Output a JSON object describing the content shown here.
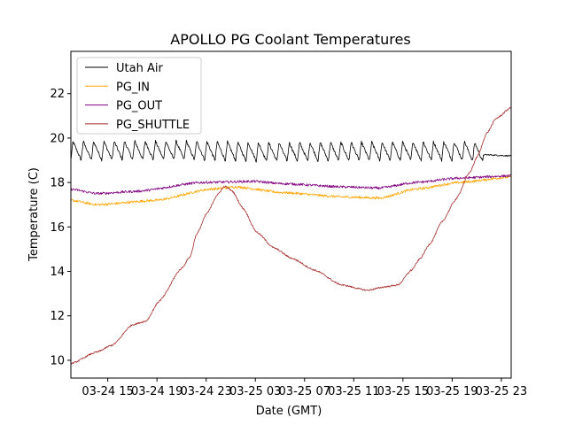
{
  "chart_data": {
    "type": "line",
    "title": "APOLLO PG Coolant Temperatures",
    "xlabel": "Date (GMT)",
    "ylabel": "Temperature (C)",
    "x_units": "hours since 03-24 00:00 GMT",
    "xlim": [
      12.0,
      47.8
    ],
    "ylim": [
      9.2,
      23.9
    ],
    "xticks": [
      {
        "value": 15,
        "label": "03-24 15"
      },
      {
        "value": 19,
        "label": "03-24 19"
      },
      {
        "value": 23,
        "label": "03-24 23"
      },
      {
        "value": 27,
        "label": "03-25 03"
      },
      {
        "value": 31,
        "label": "03-25 07"
      },
      {
        "value": 35,
        "label": "03-25 11"
      },
      {
        "value": 39,
        "label": "03-25 15"
      },
      {
        "value": 43,
        "label": "03-25 19"
      },
      {
        "value": 47,
        "label": "03-25 23"
      }
    ],
    "yticks": [
      {
        "value": 10,
        "label": "10"
      },
      {
        "value": 12,
        "label": "12"
      },
      {
        "value": 14,
        "label": "14"
      },
      {
        "value": 16,
        "label": "16"
      },
      {
        "value": 18,
        "label": "18"
      },
      {
        "value": 20,
        "label": "20"
      },
      {
        "value": 22,
        "label": "22"
      }
    ],
    "grid": false,
    "legend_position": "top-left",
    "series": [
      {
        "name": "Utah Air",
        "color": "#000000",
        "oscillation": {
          "low": 19.0,
          "high": 19.85,
          "cycles": 40,
          "until_hour": 45.5
        },
        "x": [
          12.0,
          20.0,
          28.0,
          36.0,
          44.0,
          45.5,
          47.8
        ],
        "y": [
          19.4,
          19.45,
          19.3,
          19.35,
          19.4,
          19.25,
          19.2
        ]
      },
      {
        "name": "PG_IN",
        "color": "#ffa500",
        "x": [
          12.0,
          14.1,
          19.0,
          23.3,
          25.5,
          29.1,
          34.2,
          37.1,
          40.0,
          43.6,
          47.8
        ],
        "y": [
          17.2,
          17.0,
          17.2,
          17.7,
          17.8,
          17.55,
          17.35,
          17.3,
          17.7,
          18.0,
          18.25
        ]
      },
      {
        "name": "PG_OUT",
        "color": "#800080",
        "x": [
          12.0,
          14.1,
          17.3,
          22.6,
          26.9,
          29.1,
          34.2,
          37.1,
          40.0,
          43.6,
          47.8
        ],
        "y": [
          17.7,
          17.5,
          17.6,
          18.0,
          18.05,
          17.95,
          17.8,
          17.75,
          18.0,
          18.2,
          18.3
        ]
      },
      {
        "name": "PG_SHUTTLE",
        "color": "#a52a2a",
        "x": [
          12.0,
          14.1,
          15.4,
          17.0,
          18.1,
          19.2,
          21.0,
          21.7,
          22.2,
          23.1,
          23.9,
          24.5,
          25.1,
          26.0,
          27.1,
          28.5,
          30.0,
          31.8,
          34.0,
          36.1,
          37.6,
          38.6,
          39.7,
          40.4,
          41.2,
          42.2,
          43.3,
          44.4,
          45.1,
          45.8,
          46.6,
          47.8
        ],
        "y": [
          9.85,
          10.37,
          10.69,
          11.6,
          11.76,
          12.67,
          14.14,
          14.66,
          15.65,
          16.64,
          17.44,
          17.83,
          17.63,
          16.84,
          15.77,
          15.06,
          14.58,
          14.06,
          13.39,
          13.15,
          13.31,
          13.39,
          14.06,
          14.58,
          15.25,
          16.25,
          17.24,
          18.43,
          19.22,
          20.21,
          20.89,
          21.37
        ]
      }
    ]
  }
}
